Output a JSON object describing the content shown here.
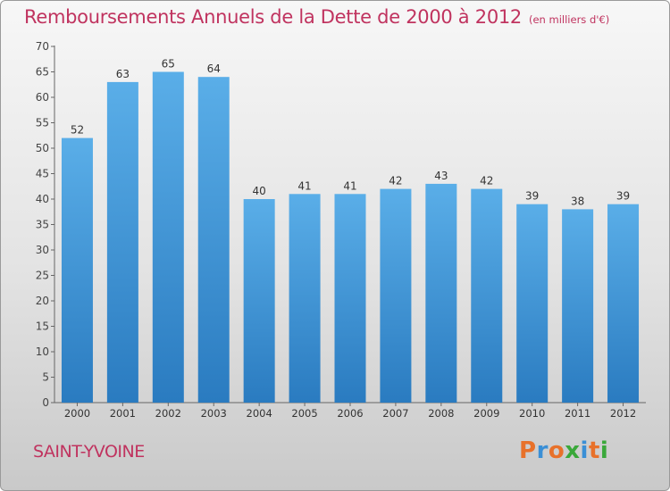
{
  "title": "Remboursements Annuels de la Dette de 2000 à 2012",
  "unit": "(en milliers d'€)",
  "commune": "SAINT-YVOINE",
  "logo_text": "Proxiti",
  "colors": {
    "title": "#c0335f",
    "bar_top": "#5aaee8",
    "bar_bottom": "#2a7bc0",
    "logo_letters": [
      "#e8712a",
      "#3a8fd6",
      "#e8712a",
      "#3aa83a",
      "#3a8fd6",
      "#e8712a",
      "#3aa83a"
    ]
  },
  "chart_data": {
    "type": "bar",
    "title": "Remboursements Annuels de la Dette de 2000 à 2012",
    "subtitle": "(en milliers d'€)",
    "categories": [
      "2000",
      "2001",
      "2002",
      "2003",
      "2004",
      "2005",
      "2006",
      "2007",
      "2008",
      "2009",
      "2010",
      "2011",
      "2012"
    ],
    "values": [
      52,
      63,
      65,
      64,
      40,
      41,
      41,
      42,
      43,
      42,
      39,
      38,
      39
    ],
    "ylim": [
      0,
      70
    ],
    "yticks": [
      0,
      5,
      10,
      15,
      20,
      25,
      30,
      35,
      40,
      45,
      50,
      55,
      60,
      65,
      70
    ],
    "grid": false,
    "data_labels": true
  }
}
